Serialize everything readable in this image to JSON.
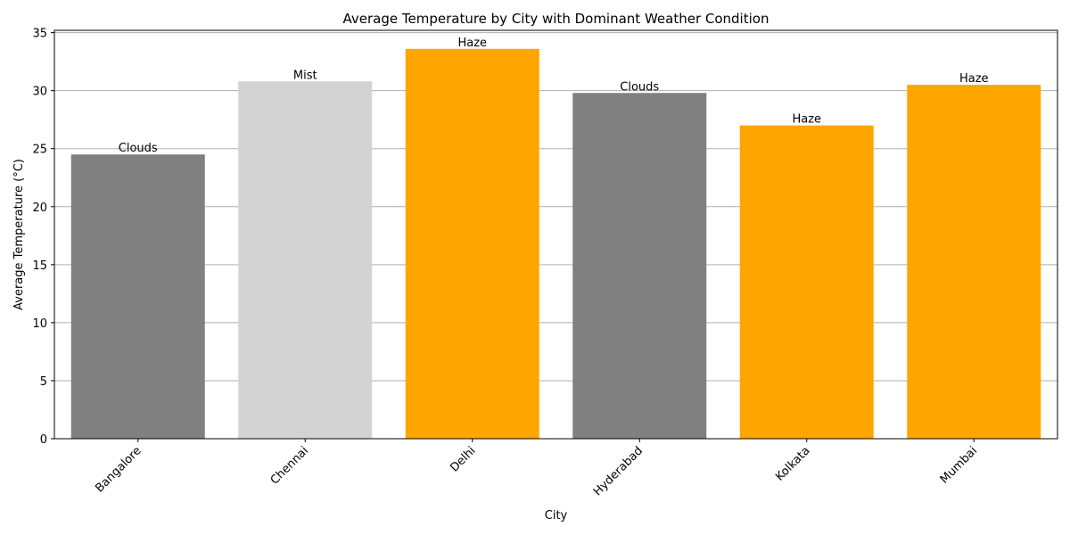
{
  "chart_data": {
    "type": "bar",
    "title": "Average Temperature by City with Dominant Weather Condition",
    "xlabel": "City",
    "ylabel": "Average Temperature (°C)",
    "categories": [
      "Bangalore",
      "Chennai",
      "Delhi",
      "Hyderabad",
      "Kolkata",
      "Mumbai"
    ],
    "values": [
      24.5,
      30.8,
      33.6,
      29.8,
      27.0,
      30.5
    ],
    "bar_labels": [
      "Clouds",
      "Mist",
      "Haze",
      "Clouds",
      "Haze",
      "Haze"
    ],
    "bar_colors": [
      "#808080",
      "#d3d3d3",
      "#ffa500",
      "#808080",
      "#ffa500",
      "#ffa500"
    ],
    "ylim": [
      0,
      35.2
    ],
    "yticks": [
      0,
      5,
      10,
      15,
      20,
      25,
      30,
      35
    ],
    "grid": "y",
    "xtick_rotation": 45
  }
}
